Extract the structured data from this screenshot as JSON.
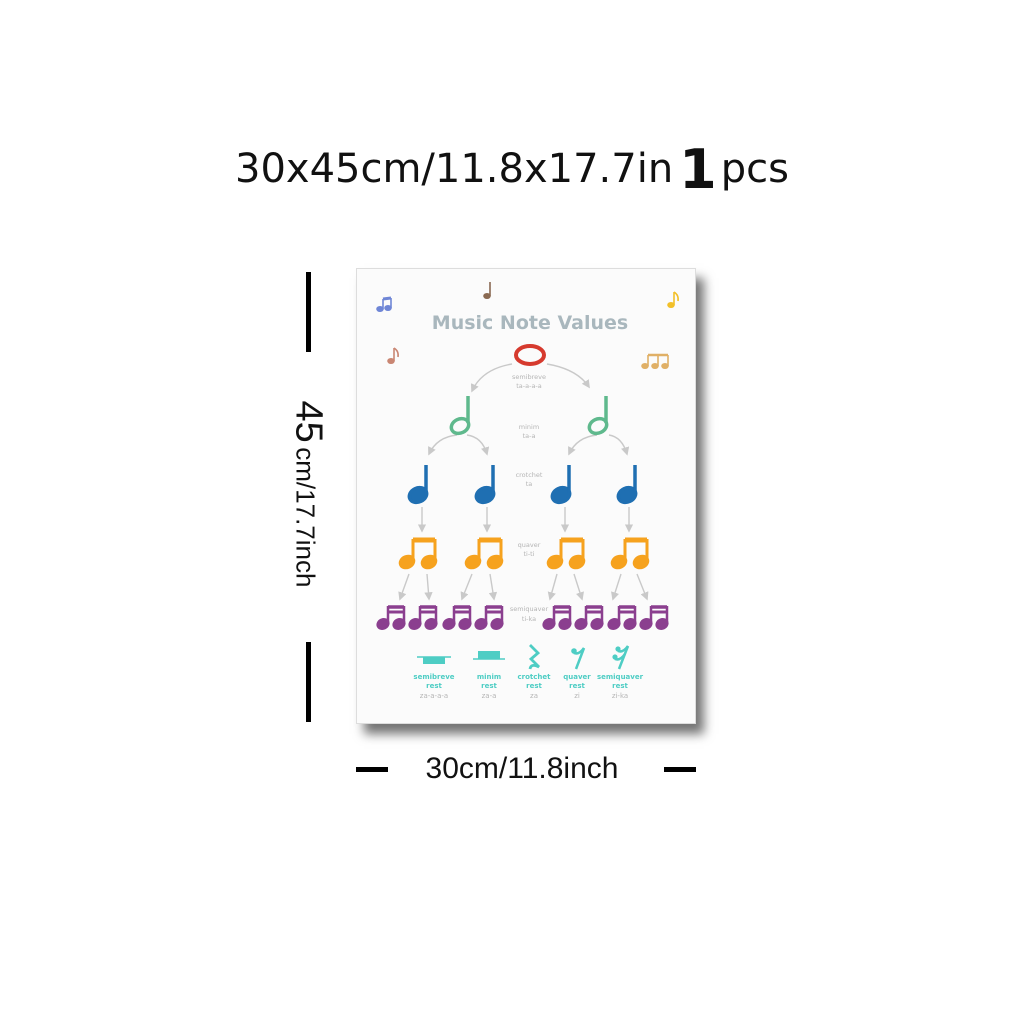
{
  "headline": {
    "part1": "30x45cm/11.8x17.7in",
    "count": "1",
    "part2": "pcs"
  },
  "height_label": {
    "number": "45",
    "unit": "cm/17.7inch"
  },
  "width_label": "30cm/11.8inch",
  "poster": {
    "title": "Music Note Values",
    "levels": [
      {
        "name": "semibreve",
        "sound": "ta-a-a-a"
      },
      {
        "name": "minim",
        "sound": "ta-a"
      },
      {
        "name": "crotchet",
        "sound": "ta"
      },
      {
        "name": "quaver",
        "sound": "ti-ti"
      },
      {
        "name": "semiquaver",
        "sound": "ti-ka"
      }
    ],
    "rests": [
      {
        "name1": "semibreve",
        "name2": "rest",
        "sound": "za-a-a-a"
      },
      {
        "name1": "minim",
        "name2": "rest",
        "sound": "za-a"
      },
      {
        "name1": "crotchet",
        "name2": "rest",
        "sound": "za"
      },
      {
        "name1": "quaver",
        "name2": "rest",
        "sound": "zi"
      },
      {
        "name1": "semiquaver",
        "name2": "rest",
        "sound": "zi-ka"
      }
    ],
    "colors": {
      "title": "#a9b7bd",
      "semibreve": "#d63a2e",
      "minim": "#5fb98d",
      "crotchet": "#1f6fb2",
      "quaver": "#f6a21e",
      "semiquaver": "#8b3f8f",
      "rest": "#4ecdc4",
      "arrow": "#c9c9c9",
      "label": "#b5b5b5"
    }
  }
}
